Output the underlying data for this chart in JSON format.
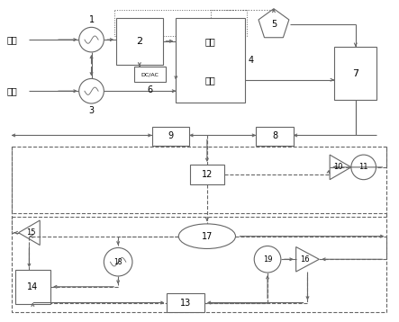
{
  "fig_width": 4.43,
  "fig_height": 3.58,
  "dpi": 100,
  "lc": "#666666",
  "lw": 0.8,
  "fuel_label": "燃料",
  "air_label": "空气",
  "anode_label": "阳极",
  "cathode_label": "阴极",
  "dcac_label": "DC/AC"
}
